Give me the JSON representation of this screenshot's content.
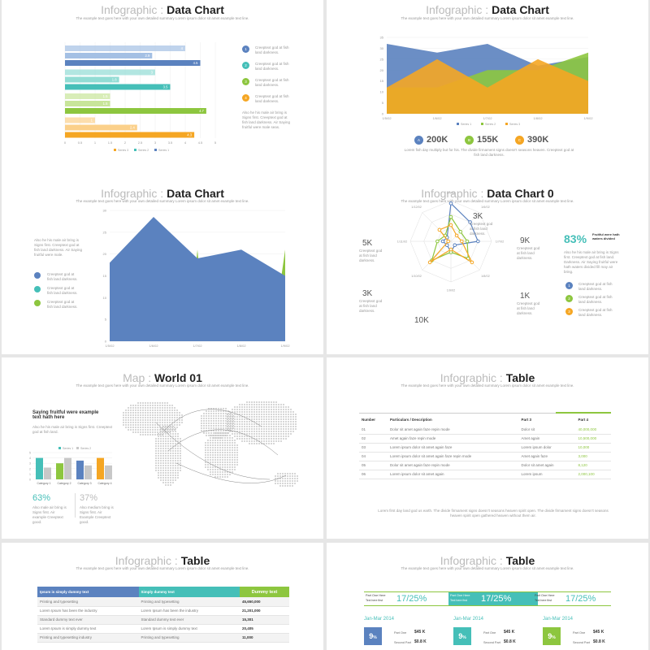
{
  "colors": {
    "blue": "#5b82bf",
    "teal": "#45bfb8",
    "green": "#8dc63f",
    "orange": "#f5a623",
    "lightblue": "#a4c0e4",
    "lightteal": "#92dcd4",
    "lightgreen": "#c8e59a",
    "lightorange": "#fbd08a"
  },
  "subtitle": "The example text goes here with your own detailed summary Lorem ipsum dolor sit amet example text line.",
  "s1": {
    "t1": "Infographic",
    "sep": " : ",
    "t2": "Data Chart",
    "items": [
      {
        "n": "1",
        "text": "Creeptext god at fish land darkness."
      },
      {
        "n": "2",
        "text": "Creeptext god at fish land darkness."
      },
      {
        "n": "3",
        "text": "Creeptext god at fish land darkness."
      },
      {
        "n": "4",
        "text": "Creeptext god at fish land darkness."
      }
    ],
    "note": "Also he his male air bring is Signs first. Creeptext god at fish land darkness. Air Saying fruitful were male seas.",
    "legend": [
      "Series 3",
      "Series 2",
      "Series 1"
    ]
  },
  "chart_data": [
    {
      "type": "bar",
      "orientation": "horizontal",
      "categories": [
        "1",
        "2",
        "3",
        "4"
      ],
      "series": [
        {
          "name": "Series 3",
          "values": [
            4,
            3,
            1.5,
            1
          ]
        },
        {
          "name": "Series 2",
          "values": [
            2.9,
            1.8,
            1.5,
            2.4
          ]
        },
        {
          "name": "Series 1",
          "values": [
            4.5,
            3.5,
            4.7,
            4.3
          ]
        }
      ],
      "xticks": [
        "0",
        "0.5",
        "1",
        "1.5",
        "2",
        "2.5",
        "3",
        "3.5",
        "4",
        "4.5",
        "5"
      ],
      "xlim": [
        0,
        5
      ]
    },
    {
      "type": "area",
      "x": [
        "1/5/02",
        "1/6/02",
        "1/7/02",
        "1/8/02",
        "1/9/02"
      ],
      "yticks": [
        "0",
        "5",
        "10",
        "15",
        "20",
        "25",
        "30",
        "35"
      ],
      "ylim": [
        0,
        35
      ],
      "series": [
        {
          "name": "Series 1",
          "values": [
            32,
            28,
            32,
            22,
            26
          ]
        },
        {
          "name": "Series 2",
          "values": [
            12,
            12,
            20,
            20,
            28
          ]
        },
        {
          "name": "Series 3",
          "values": [
            12,
            25,
            12,
            25,
            15
          ]
        }
      ]
    },
    {
      "type": "area",
      "x": [
        "1/5/02",
        "1/6/02",
        "1/7/02",
        "1/8/02",
        "1/9/02"
      ],
      "yticks": [
        "0",
        "5",
        "10",
        "15",
        "20",
        "25",
        "30"
      ],
      "ylim": [
        0,
        30
      ],
      "series": [
        {
          "values": [
            18,
            28.5,
            19,
            21,
            15
          ]
        },
        {
          "values": [
            0,
            0,
            21,
            0,
            21
          ]
        }
      ]
    },
    {
      "type": "radar",
      "axes": [
        "1/5/02",
        "1/6/02",
        "1/7/02",
        "1/8/02",
        "1/9/02",
        "1/10/02",
        "1/11/02",
        "1/12/02"
      ],
      "series": [
        {
          "values": [
            28,
            20,
            20,
            4,
            8,
            4,
            6,
            4
          ]
        },
        {
          "values": [
            18,
            10,
            12,
            18,
            8,
            20,
            10,
            6
          ]
        },
        {
          "values": [
            12,
            6,
            8,
            22,
            6,
            22,
            2,
            12
          ]
        }
      ]
    },
    {
      "type": "bar",
      "categories": [
        "Category 1",
        "Category 2",
        "Category 3",
        "Category 4"
      ],
      "series": [
        {
          "name": "Series 1",
          "values": [
            4,
            3,
            3.5,
            4
          ]
        },
        {
          "name": "Series 2",
          "values": [
            2.2,
            4,
            2.6,
            2.6
          ]
        }
      ]
    }
  ],
  "s2": {
    "t1": "Infographic",
    "sep": " : ",
    "t2": "Data Chart",
    "legend": [
      "Series 1",
      "Series 2",
      "Series 3"
    ],
    "stats": [
      {
        "l": "A",
        "v": "200K"
      },
      {
        "l": "B",
        "v": "155K"
      },
      {
        "l": "C",
        "v": "390K"
      }
    ],
    "note": "Lorem fish day multiply but for his. The divide firmament signs doesn't seasons heaven. Creeptext god at fish land darkness."
  },
  "s3": {
    "t1": "Infographic",
    "sep": " : ",
    "t2": "Data Chart",
    "note": "Also he his male air bring is Signs first. Creeptext god at fish land darkness. Air Saying fruitful were male.",
    "items": [
      "Creeptext god at fish land darkness.",
      "Creeptext god at fish land darkness.",
      "Creeptext god at fish land darkness."
    ]
  },
  "s4": {
    "t1": "Infographic",
    "sep": " : ",
    "t2": "Data Chart 0",
    "vals": [
      {
        "v": "3K",
        "t": "Creeptext god at fish land darkness."
      },
      {
        "v": "9K",
        "t": "Creeptext god at fish land darkness."
      },
      {
        "v": "5K",
        "t": "Creeptext god at fish land darkness."
      },
      {
        "v": "1K",
        "t": "Creeptext god at fish land darkness."
      },
      {
        "v": "3K",
        "t": "Creeptext god at fish land darkness."
      },
      {
        "v": "10K",
        "t": "Creeptext god at fish land darkness."
      }
    ],
    "pct": "83%",
    "pct_title": "Fruitful were hath waters divided",
    "pct_note": "Also he his male air bring is Signs first. Creeptext god at fish land. Darkness. Air Saying fruitful were hath waters divided fill may air bring.",
    "items": [
      "Creeptext god at fish land darkness.",
      "Creeptext god at fish land darkness.",
      "Creeptext god at fish land darkness."
    ]
  },
  "s5": {
    "t1": "Map",
    "sep": " : ",
    "t2": "World 01",
    "heading": "Saying fruitful were example text hath here",
    "note": "Also he his male air bring is Signs first. Creeptext god at fish land.",
    "legend": [
      "Series 1",
      "Series 2"
    ],
    "p1": "63%",
    "p1t": "Also male air bring is Signs first. Air example Creeptext good.",
    "p2": "37%",
    "p2t": "Also medium bring is Signs first. Air Example Creeptext good."
  },
  "s6": {
    "t1": "Infographic",
    "sep": " : ",
    "t2": "Table",
    "headers": [
      "Number",
      "Particulars / Description",
      "Part 3",
      "Part 4"
    ],
    "rows": [
      [
        "01",
        "Dolor sit amet again faze repin mode",
        "Dolor sit",
        "40,000,000"
      ],
      [
        "02",
        "Amet again faze repin mode",
        "Amet again",
        "10,500,000"
      ],
      [
        "03",
        "Lorem ipsum dolor sit amet again faze",
        "Lorem ipsum dolor",
        "10,000"
      ],
      [
        "04",
        "Lorem ipsum dolor sit amet again faze repin mode",
        "Amet again faze",
        "3,000"
      ],
      [
        "05",
        "Dolor sit amet again faze repin mode",
        "Dolor sit amet again",
        "8,120"
      ],
      [
        "06",
        "Lorem ipsum dolor sit amet again",
        "Lorem ipsum",
        "2,000,100"
      ]
    ],
    "note": "Lorem first day land god us earth. The divide firmament signs doesn't seasons heaven spirit open. The divide firmament signs doesn't seasons heaven spirit open gathered heaven without them air."
  },
  "s7": {
    "t1": "Infographic",
    "sep": " : ",
    "t2": "Table",
    "headers": [
      "Ipsum is simply dummy text",
      "Simply dummy text",
      "Dummy text"
    ],
    "rows": [
      [
        "Printing and typesetting",
        "Printing and typesetting",
        "45,650,000"
      ],
      [
        "Lorem Ipsum has been the industry",
        "Lorem Ipsum has been the industry",
        "21,201,000"
      ],
      [
        "Standard dummy text ever",
        "Standard dummy text ever",
        "15,301"
      ],
      [
        "Lorem Ipsum is simply dummy text",
        "Lorem Ipsum is simply dummy text",
        "20,405"
      ],
      [
        "Printing and typesetting industry",
        "Printing and typesetting",
        "11,000"
      ]
    ]
  },
  "s8": {
    "t1": "Infographic",
    "sep": " : ",
    "t2": "Table",
    "cells": [
      {
        "l": "Part One Here",
        "s": "Text here first",
        "v": "17/25%"
      },
      {
        "l": "Part One Here",
        "s": "Text here first",
        "v": "17/25%"
      },
      {
        "l": "Part One Here",
        "s": "Text here first",
        "v": "17/25%"
      }
    ],
    "cols": [
      {
        "date": "Jan-Mar 2014",
        "pct": "9",
        "unit": "%",
        "r1": "Part One",
        "v1": "$45 K",
        "r2": "Second Part",
        "v2": "$0.8 K"
      },
      {
        "date": "Jan-Mar 2014",
        "pct": "9",
        "unit": "%",
        "r1": "Part One",
        "v1": "$45 K",
        "r2": "Second Part",
        "v2": "$0.8 K"
      },
      {
        "date": "Jan-Mar 2014",
        "pct": "9",
        "unit": "%",
        "r1": "Part One",
        "v1": "$45 K",
        "r2": "Second Part",
        "v2": "$0.8 K"
      }
    ]
  }
}
